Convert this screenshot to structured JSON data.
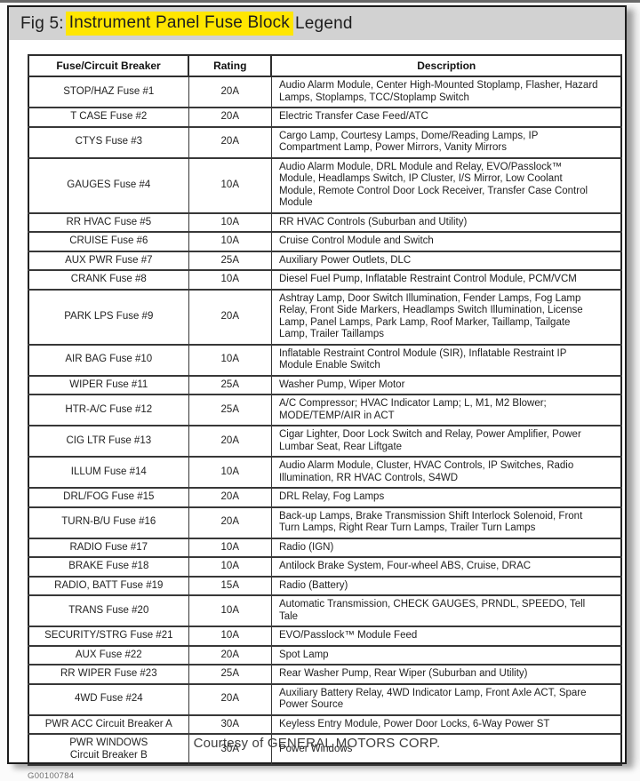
{
  "page": {
    "title_prefix": "Fig 5: ",
    "title_highlight": "Instrument Panel Fuse Block",
    "title_suffix": " Legend",
    "figure_id": "G00100784",
    "courtesy": "Courtesy of GENERAL MOTORS CORP.",
    "colors": {
      "highlight": "#ffe600",
      "titlebar": "#d2d2d2",
      "panel_border": "#1c1c1c"
    }
  },
  "table": {
    "headers": [
      "Fuse/Circuit Breaker",
      "Rating",
      "Description"
    ],
    "rows": [
      {
        "fuse": "STOP/HAZ Fuse #1",
        "rating": "20A",
        "description": "Audio Alarm Module, Center High-Mounted Stoplamp, Flasher, Hazard Lamps, Stoplamps, TCC/Stoplamp Switch"
      },
      {
        "fuse": "T CASE Fuse #2",
        "rating": "20A",
        "description": "Electric Transfer Case Feed/ATC"
      },
      {
        "fuse": "CTYS Fuse #3",
        "rating": "20A",
        "description": "Cargo Lamp, Courtesy Lamps, Dome/Reading Lamps, IP Compartment Lamp, Power Mirrors, Vanity Mirrors"
      },
      {
        "fuse": "GAUGES Fuse #4",
        "rating": "10A",
        "description": "Audio Alarm Module, DRL Module and Relay, EVO/Passlock™ Module, Headlamps Switch, IP Cluster, I/S Mirror, Low Coolant Module, Remote Control Door Lock Receiver, Transfer Case Control Module"
      },
      {
        "fuse": "RR HVAC Fuse #5",
        "rating": "10A",
        "description": "RR HVAC Controls (Suburban and Utility)"
      },
      {
        "fuse": "CRUISE Fuse #6",
        "rating": "10A",
        "description": "Cruise Control Module and Switch"
      },
      {
        "fuse": "AUX PWR Fuse #7",
        "rating": "25A",
        "description": "Auxiliary Power Outlets, DLC"
      },
      {
        "fuse": "CRANK Fuse #8",
        "rating": "10A",
        "description": "Diesel Fuel Pump, Inflatable Restraint Control Module, PCM/VCM"
      },
      {
        "fuse": "PARK LPS Fuse #9",
        "rating": "20A",
        "description": "Ashtray Lamp, Door Switch Illumination, Fender Lamps, Fog Lamp Relay, Front Side Markers, Headlamps Switch Illumination, License Lamp, Panel Lamps, Park Lamp, Roof Marker, Taillamp, Tailgate Lamp, Trailer Taillamps"
      },
      {
        "fuse": "AIR BAG Fuse #10",
        "rating": "10A",
        "description": "Inflatable Restraint Control Module (SIR), Inflatable Restraint IP Module Enable Switch"
      },
      {
        "fuse": "WIPER Fuse #11",
        "rating": "25A",
        "description": "Washer Pump, Wiper Motor"
      },
      {
        "fuse": "HTR-A/C Fuse #12",
        "rating": "25A",
        "description": "A/C Compressor; HVAC Indicator Lamp; L, M1, M2 Blower; MODE/TEMP/AIR in ACT"
      },
      {
        "fuse": "CIG LTR Fuse #13",
        "rating": "20A",
        "description": "Cigar Lighter, Door Lock Switch and Relay, Power Amplifier, Power Lumbar Seat, Rear Liftgate"
      },
      {
        "fuse": "ILLUM Fuse #14",
        "rating": "10A",
        "description": "Audio Alarm Module, Cluster, HVAC Controls, IP Switches, Radio Illumination, RR HVAC Controls, S4WD"
      },
      {
        "fuse": "DRL/FOG Fuse #15",
        "rating": "20A",
        "description": "DRL Relay, Fog Lamps"
      },
      {
        "fuse": "TURN-B/U Fuse #16",
        "rating": "20A",
        "description": "Back-up Lamps, Brake Transmission Shift Interlock Solenoid, Front Turn Lamps, Right Rear Turn Lamps, Trailer Turn Lamps"
      },
      {
        "fuse": "RADIO Fuse #17",
        "rating": "10A",
        "description": "Radio (IGN)"
      },
      {
        "fuse": "BRAKE Fuse #18",
        "rating": "10A",
        "description": "Antilock Brake System, Four-wheel ABS, Cruise, DRAC"
      },
      {
        "fuse": "RADIO, BATT Fuse #19",
        "rating": "15A",
        "description": "Radio (Battery)"
      },
      {
        "fuse": "TRANS Fuse #20",
        "rating": "10A",
        "description": "Automatic Transmission, CHECK GAUGES, PRNDL, SPEEDO, Tell Tale"
      },
      {
        "fuse": "SECURITY/STRG Fuse #21",
        "rating": "10A",
        "description": "EVO/Passlock™ Module Feed"
      },
      {
        "fuse": "AUX Fuse #22",
        "rating": "20A",
        "description": "Spot Lamp"
      },
      {
        "fuse": "RR WIPER Fuse #23",
        "rating": "25A",
        "description": "Rear Washer Pump, Rear Wiper (Suburban and Utility)"
      },
      {
        "fuse": "4WD Fuse #24",
        "rating": "20A",
        "description": "Auxiliary Battery Relay, 4WD Indicator Lamp, Front Axle ACT, Spare Power Source"
      },
      {
        "fuse": "PWR ACC Circuit Breaker A",
        "rating": "30A",
        "description": "Keyless Entry Module, Power Door Locks, 6-Way Power ST"
      },
      {
        "fuse": "PWR WINDOWS\nCircuit Breaker B",
        "rating": "30A",
        "description": "Power Windows"
      }
    ]
  }
}
